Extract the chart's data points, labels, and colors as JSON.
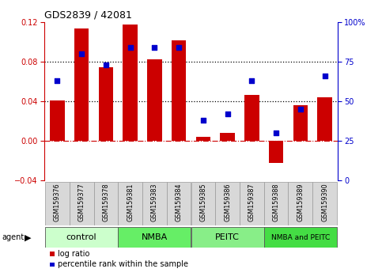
{
  "title": "GDS2839 / 42081",
  "samples": [
    "GSM159376",
    "GSM159377",
    "GSM159378",
    "GSM159381",
    "GSM159383",
    "GSM159384",
    "GSM159385",
    "GSM159386",
    "GSM159387",
    "GSM159388",
    "GSM159389",
    "GSM159390"
  ],
  "log_ratio": [
    0.041,
    0.114,
    0.075,
    0.118,
    0.083,
    0.102,
    0.004,
    0.008,
    0.047,
    -0.022,
    0.036,
    0.044
  ],
  "percentile_rank": [
    0.63,
    0.8,
    0.73,
    0.84,
    0.84,
    0.84,
    0.38,
    0.42,
    0.63,
    0.3,
    0.45,
    0.66
  ],
  "groups": [
    {
      "label": "control",
      "start": 0,
      "end": 3,
      "color": "#ccffcc"
    },
    {
      "label": "NMBA",
      "start": 3,
      "end": 6,
      "color": "#66ee66"
    },
    {
      "label": "PEITC",
      "start": 6,
      "end": 9,
      "color": "#88ee88"
    },
    {
      "label": "NMBA and PEITC",
      "start": 9,
      "end": 12,
      "color": "#44dd44"
    }
  ],
  "bar_color": "#cc0000",
  "dot_color": "#0000cc",
  "ylim_left": [
    -0.04,
    0.12
  ],
  "ylim_right": [
    0.0,
    1.0
  ],
  "yticks_left": [
    -0.04,
    0.0,
    0.04,
    0.08,
    0.12
  ],
  "yticks_right": [
    0.0,
    0.25,
    0.5,
    0.75,
    1.0
  ],
  "ytick_labels_right": [
    "0",
    "25",
    "50",
    "75",
    "100%"
  ],
  "hlines": [
    0.04,
    0.08
  ],
  "background_color": "#ffffff",
  "legend_items": [
    "log ratio",
    "percentile rank within the sample"
  ],
  "label_color_left": "#cc0000",
  "label_color_right": "#0000cc"
}
